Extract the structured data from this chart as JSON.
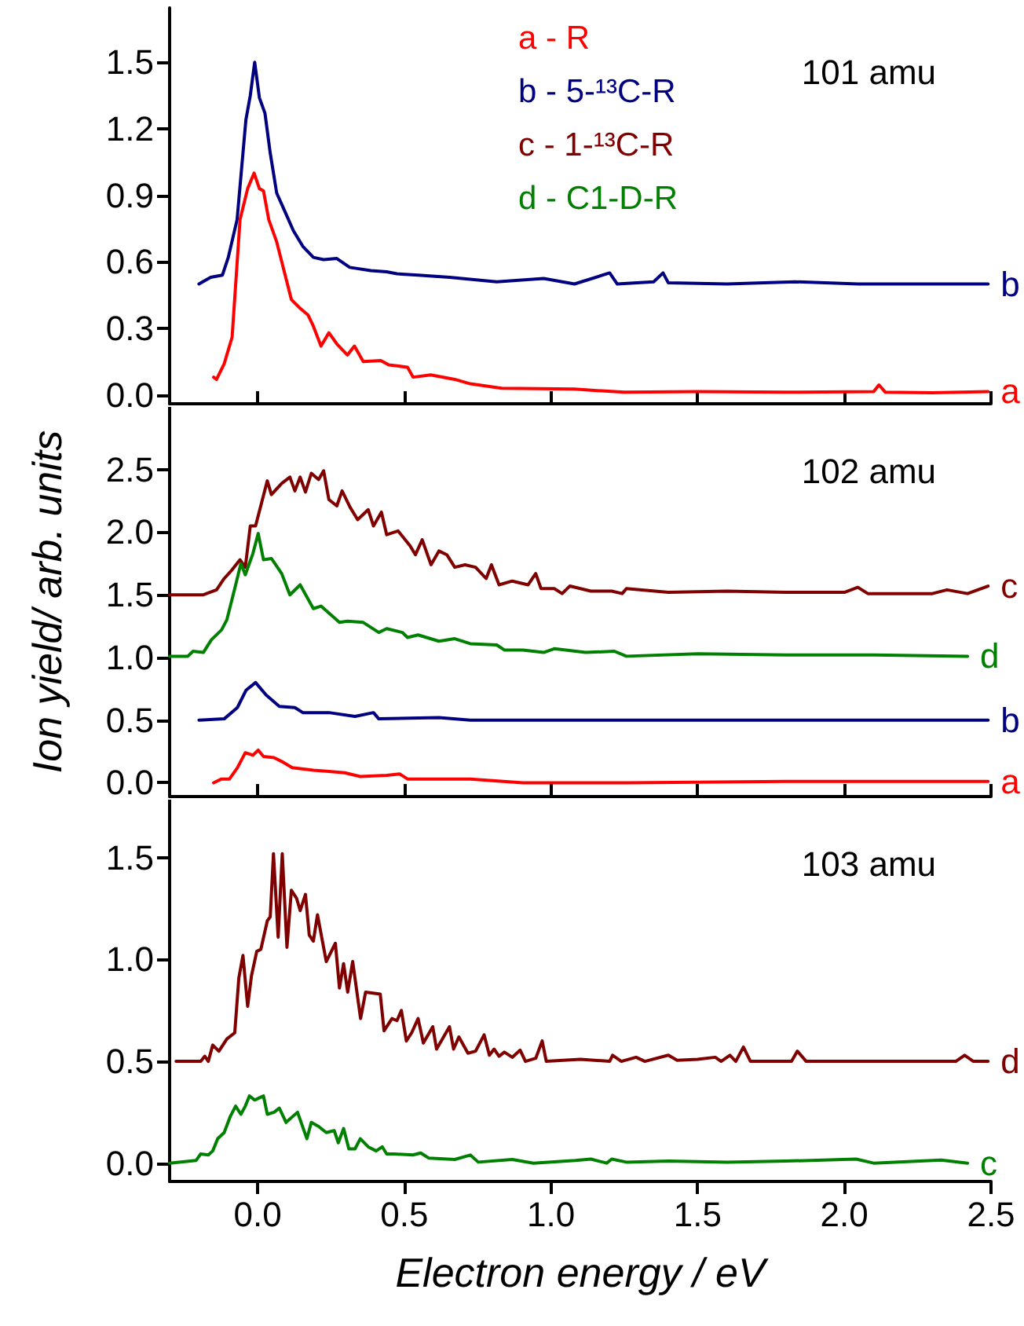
{
  "chart_data": [
    {
      "type": "line",
      "tick_labels": "y",
      "xlim": [
        -0.3,
        2.5
      ],
      "xticks": [
        0,
        0.5,
        1,
        1.5,
        2,
        2.5
      ],
      "ylim": [
        -0.04,
        1.745
      ],
      "yticks": [
        {
          "value": 0,
          "label": "0.0"
        },
        0.3,
        0.6,
        0.9,
        1.2,
        1.5
      ],
      "title": "101 amu",
      "annotations": [
        "b",
        "a"
      ],
      "series": [
        {
          "color": "#000080",
          "x": [
            -0.2,
            -0.16,
            -0.12,
            -0.1,
            -0.07,
            -0.04,
            -0.025,
            -0.01,
            0.006,
            0.025,
            0.043,
            0.065,
            0.092,
            0.122,
            0.154,
            0.19,
            0.225,
            0.27,
            0.314,
            0.386,
            0.44,
            0.475,
            0.547,
            0.654,
            0.815,
            0.975,
            1.08,
            1.2,
            1.226,
            1.35,
            1.382,
            1.4,
            1.6,
            1.832,
            2.047,
            2.49
          ],
          "values": [
            0.5,
            0.53,
            0.54,
            0.62,
            0.79,
            1.24,
            1.35,
            1.5,
            1.34,
            1.27,
            1.09,
            0.91,
            0.83,
            0.74,
            0.67,
            0.62,
            0.61,
            0.615,
            0.575,
            0.56,
            0.555,
            0.546,
            0.54,
            0.53,
            0.51,
            0.525,
            0.5,
            0.55,
            0.5,
            0.51,
            0.55,
            0.505,
            0.5,
            0.51,
            0.5,
            0.5
          ]
        },
        {
          "color": "#ff0000",
          "x": [
            -0.15,
            -0.14,
            -0.114,
            -0.087,
            -0.06,
            -0.034,
            -0.012,
            0.006,
            0.02,
            0.038,
            0.065,
            0.092,
            0.115,
            0.145,
            0.172,
            0.19,
            0.216,
            0.243,
            0.27,
            0.306,
            0.33,
            0.36,
            0.42,
            0.447,
            0.511,
            0.53,
            0.59,
            0.672,
            0.725,
            0.832,
            1.08,
            1.25,
            1.5,
            1.8,
            2.1,
            2.118,
            2.14,
            2.3,
            2.49
          ],
          "values": [
            0.08,
            0.07,
            0.14,
            0.26,
            0.79,
            0.93,
            1.0,
            0.93,
            0.92,
            0.79,
            0.69,
            0.55,
            0.43,
            0.39,
            0.36,
            0.31,
            0.22,
            0.28,
            0.23,
            0.18,
            0.22,
            0.15,
            0.155,
            0.135,
            0.125,
            0.08,
            0.09,
            0.07,
            0.05,
            0.03,
            0.026,
            0.012,
            0.015,
            0.012,
            0.015,
            0.045,
            0.012,
            0.01,
            0.015
          ]
        }
      ]
    },
    {
      "type": "line",
      "tick_labels": "y",
      "ylabel": "Ion yield/ arb. units",
      "legend": "top",
      "xlim": [
        -0.3,
        2.5
      ],
      "xticks": [
        0,
        0.5,
        1,
        1.5,
        2,
        2.5
      ],
      "ylim": [
        -0.11,
        3.0
      ],
      "yticks": [
        {
          "value": 0,
          "label": "0.0"
        },
        0.5,
        {
          "value": 1,
          "label": "1.0"
        },
        1.5,
        {
          "value": 2,
          "label": "2.0"
        },
        2.5
      ],
      "title": "102 amu",
      "annotations": [
        "a",
        "b",
        "c",
        "d"
      ],
      "series": [
        {
          "name": "a - R",
          "color": "#ff0000",
          "x": [
            -0.15,
            -0.123,
            -0.096,
            -0.069,
            -0.042,
            -0.016,
            0.002,
            0.02,
            0.056,
            0.082,
            0.118,
            0.19,
            0.243,
            0.297,
            0.35,
            0.44,
            0.484,
            0.511,
            0.725,
            0.904,
            1.261,
            1.8,
            2.49
          ],
          "values": [
            0.0,
            0.03,
            0.03,
            0.12,
            0.24,
            0.22,
            0.26,
            0.21,
            0.2,
            0.17,
            0.12,
            0.1,
            0.09,
            0.08,
            0.05,
            0.06,
            0.07,
            0.03,
            0.03,
            0.0,
            0.0,
            0.01,
            0.01
          ]
        },
        {
          "name": "b - 5-¹³C-R",
          "color": "#000080",
          "x": [
            -0.2,
            -0.114,
            -0.069,
            -0.039,
            -0.007,
            0.029,
            0.074,
            0.127,
            0.154,
            0.243,
            0.332,
            0.395,
            0.413,
            0.618,
            0.725,
            1.261,
            1.9,
            2.49
          ],
          "values": [
            0.5,
            0.51,
            0.6,
            0.74,
            0.8,
            0.7,
            0.61,
            0.6,
            0.56,
            0.56,
            0.53,
            0.56,
            0.51,
            0.52,
            0.5,
            0.5,
            0.5,
            0.5
          ]
        },
        {
          "name": "c - 1-¹³C-R",
          "color": "#800000",
          "x": [
            -0.3,
            -0.185,
            -0.14,
            -0.114,
            -0.087,
            -0.06,
            -0.042,
            -0.025,
            -0.007,
            0.033,
            0.047,
            0.082,
            0.11,
            0.127,
            0.145,
            0.163,
            0.183,
            0.208,
            0.225,
            0.243,
            0.27,
            0.288,
            0.315,
            0.341,
            0.377,
            0.395,
            0.422,
            0.44,
            0.479,
            0.52,
            0.538,
            0.561,
            0.591,
            0.618,
            0.645,
            0.672,
            0.707,
            0.743,
            0.779,
            0.797,
            0.823,
            0.868,
            0.922,
            0.948,
            0.966,
            1.011,
            1.038,
            1.064,
            1.136,
            1.207,
            1.243,
            1.257,
            1.4,
            1.6,
            1.8,
            2.0,
            2.046,
            2.08,
            2.3,
            2.35,
            2.42,
            2.49
          ],
          "values": [
            1.5,
            1.5,
            1.54,
            1.63,
            1.7,
            1.78,
            1.72,
            2.05,
            2.05,
            2.41,
            2.3,
            2.39,
            2.44,
            2.33,
            2.44,
            2.32,
            2.47,
            2.42,
            2.49,
            2.26,
            2.21,
            2.33,
            2.2,
            2.1,
            2.18,
            2.05,
            2.16,
            1.98,
            2.01,
            1.89,
            1.82,
            1.94,
            1.74,
            1.85,
            1.82,
            1.72,
            1.74,
            1.72,
            1.63,
            1.74,
            1.58,
            1.61,
            1.58,
            1.67,
            1.55,
            1.55,
            1.51,
            1.57,
            1.53,
            1.53,
            1.51,
            1.55,
            1.52,
            1.53,
            1.52,
            1.52,
            1.56,
            1.51,
            1.51,
            1.54,
            1.51,
            1.57
          ]
        },
        {
          "name": "d - C1-D-R",
          "color": "#008000",
          "x": [
            -0.3,
            -0.238,
            -0.22,
            -0.185,
            -0.158,
            -0.123,
            -0.105,
            -0.078,
            -0.057,
            -0.042,
            -0.016,
            0.002,
            0.02,
            0.047,
            0.082,
            0.11,
            0.145,
            0.19,
            0.216,
            0.279,
            0.306,
            0.36,
            0.413,
            0.44,
            0.493,
            0.511,
            0.547,
            0.618,
            0.672,
            0.725,
            0.815,
            0.841,
            0.904,
            0.975,
            1.011,
            1.118,
            1.216,
            1.257,
            1.5,
            1.8,
            2.1,
            2.42
          ],
          "values": [
            1.01,
            1.01,
            1.05,
            1.04,
            1.14,
            1.22,
            1.3,
            1.55,
            1.75,
            1.66,
            1.83,
            1.99,
            1.78,
            1.79,
            1.67,
            1.5,
            1.58,
            1.39,
            1.41,
            1.28,
            1.29,
            1.28,
            1.2,
            1.23,
            1.2,
            1.16,
            1.18,
            1.13,
            1.15,
            1.11,
            1.1,
            1.06,
            1.06,
            1.04,
            1.07,
            1.04,
            1.05,
            1.01,
            1.03,
            1.02,
            1.02,
            1.01
          ]
        }
      ]
    },
    {
      "type": "line",
      "xlabel": "Electron energy / eV",
      "xlim": [
        -0.3,
        2.5
      ],
      "xticks": [
        {
          "value": 0,
          "label": "0.0"
        },
        0.5,
        {
          "value": 1,
          "label": "1.0"
        },
        1.5,
        {
          "value": 2,
          "label": "2.0"
        },
        2.5
      ],
      "ylim": [
        -0.09,
        1.785
      ],
      "yticks": [
        {
          "value": 0,
          "label": "0.0"
        },
        0.5,
        {
          "value": 1,
          "label": "1.0"
        },
        1.5
      ],
      "title": "103 amu",
      "annotations": [
        "d",
        "c"
      ],
      "series": [
        {
          "color": "#800000",
          "x": [
            -0.278,
            -0.194,
            -0.18,
            -0.168,
            -0.153,
            -0.132,
            -0.105,
            -0.078,
            -0.064,
            -0.05,
            -0.034,
            -0.021,
            -0.003,
            0.011,
            0.033,
            0.043,
            0.054,
            0.07,
            0.084,
            0.1,
            0.115,
            0.133,
            0.145,
            0.163,
            0.176,
            0.19,
            0.204,
            0.234,
            0.265,
            0.279,
            0.293,
            0.307,
            0.324,
            0.351,
            0.368,
            0.418,
            0.431,
            0.458,
            0.475,
            0.49,
            0.507,
            0.525,
            0.547,
            0.565,
            0.597,
            0.61,
            0.654,
            0.668,
            0.686,
            0.717,
            0.743,
            0.772,
            0.79,
            0.806,
            0.823,
            0.841,
            0.868,
            0.895,
            0.913,
            0.948,
            0.97,
            0.984,
            1.1,
            1.2,
            1.21,
            1.24,
            1.29,
            1.32,
            1.4,
            1.43,
            1.5,
            1.56,
            1.58,
            1.61,
            1.63,
            1.656,
            1.68,
            1.75,
            1.82,
            1.84,
            1.87,
            2.0,
            2.2,
            2.38,
            2.41,
            2.44,
            2.49
          ],
          "values": [
            0.5,
            0.5,
            0.525,
            0.5,
            0.58,
            0.55,
            0.61,
            0.64,
            0.91,
            1.02,
            0.77,
            0.92,
            1.04,
            1.05,
            1.19,
            1.21,
            1.52,
            1.11,
            1.52,
            1.06,
            1.34,
            1.3,
            1.24,
            1.32,
            1.12,
            1.09,
            1.22,
            0.99,
            1.08,
            0.86,
            0.98,
            0.84,
            0.99,
            0.71,
            0.84,
            0.83,
            0.65,
            0.71,
            0.7,
            0.75,
            0.6,
            0.64,
            0.71,
            0.59,
            0.67,
            0.56,
            0.67,
            0.56,
            0.62,
            0.54,
            0.55,
            0.63,
            0.53,
            0.56,
            0.525,
            0.545,
            0.52,
            0.555,
            0.5,
            0.515,
            0.6,
            0.5,
            0.51,
            0.5,
            0.53,
            0.5,
            0.52,
            0.5,
            0.53,
            0.505,
            0.51,
            0.52,
            0.5,
            0.53,
            0.5,
            0.57,
            0.5,
            0.5,
            0.5,
            0.55,
            0.5,
            0.5,
            0.5,
            0.5,
            0.53,
            0.5,
            0.5
          ]
        },
        {
          "color": "#008000",
          "x": [
            -0.3,
            -0.21,
            -0.194,
            -0.168,
            -0.153,
            -0.136,
            -0.114,
            -0.093,
            -0.075,
            -0.057,
            -0.042,
            -0.028,
            -0.01,
            0.02,
            0.033,
            0.056,
            0.074,
            0.097,
            0.136,
            0.168,
            0.183,
            0.208,
            0.234,
            0.261,
            0.275,
            0.293,
            0.311,
            0.332,
            0.35,
            0.377,
            0.404,
            0.425,
            0.44,
            0.466,
            0.529,
            0.556,
            0.583,
            0.672,
            0.725,
            0.752,
            0.868,
            0.94,
            1.083,
            1.136,
            1.19,
            1.207,
            1.257,
            1.4,
            1.6,
            1.8,
            2.04,
            2.1,
            2.33,
            2.42
          ],
          "values": [
            0.0,
            0.013,
            0.045,
            0.04,
            0.06,
            0.12,
            0.15,
            0.23,
            0.28,
            0.24,
            0.28,
            0.33,
            0.31,
            0.33,
            0.24,
            0.25,
            0.27,
            0.2,
            0.25,
            0.12,
            0.2,
            0.18,
            0.15,
            0.16,
            0.1,
            0.17,
            0.07,
            0.07,
            0.12,
            0.08,
            0.06,
            0.08,
            0.045,
            0.045,
            0.04,
            0.05,
            0.025,
            0.018,
            0.04,
            0.005,
            0.018,
            0.0,
            0.013,
            0.02,
            0.0,
            0.02,
            0.005,
            0.01,
            0.005,
            0.01,
            0.02,
            0.0,
            0.015,
            0.0
          ]
        }
      ]
    }
  ]
}
